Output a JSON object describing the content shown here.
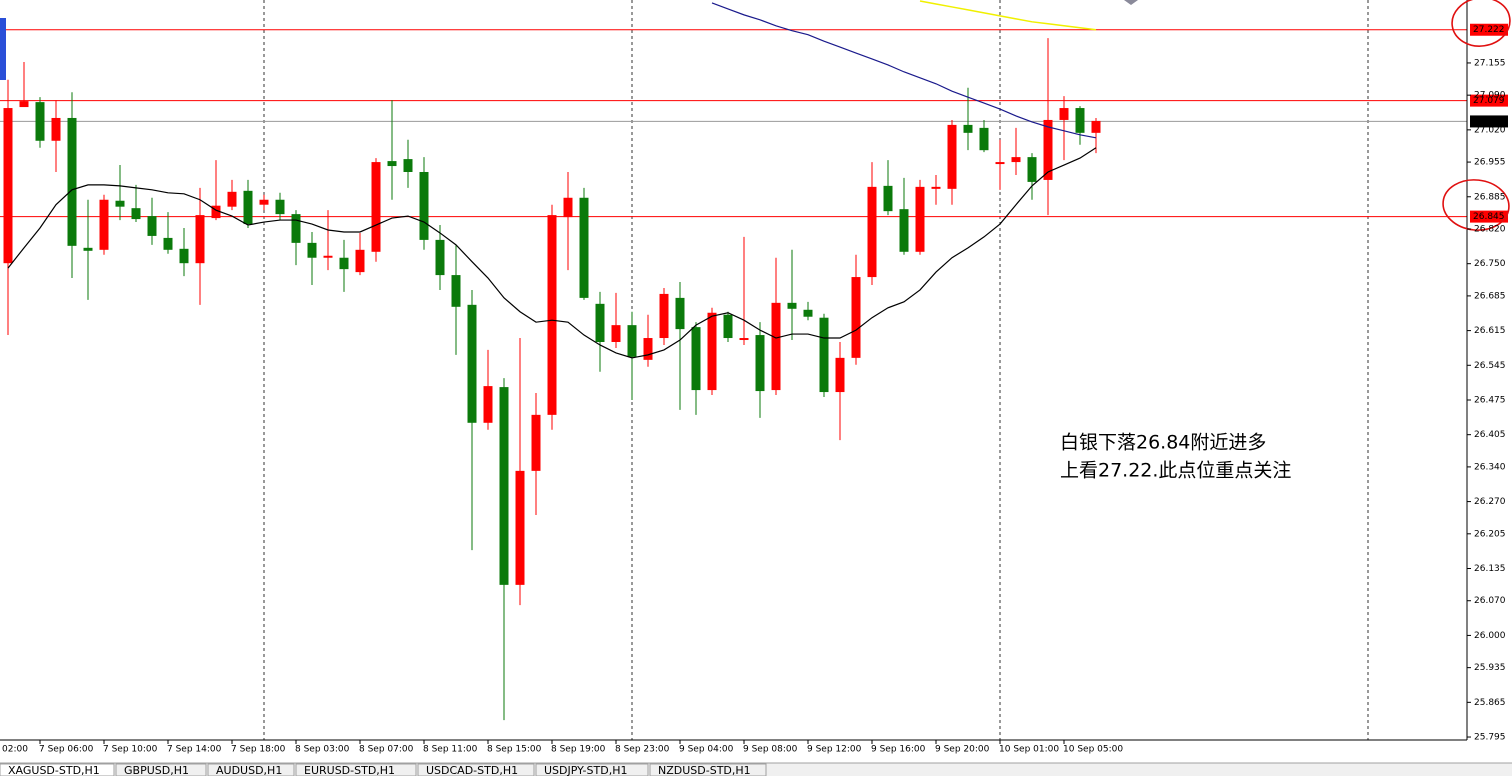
{
  "chart_data": {
    "type": "candlestick",
    "categories": [
      "02:00",
      null,
      null,
      null,
      "7 Sep 06:00",
      null,
      null,
      null,
      "7 Sep 10:00",
      null,
      null,
      null,
      "7 Sep 14:00",
      null,
      null,
      null,
      "7 Sep 18:00",
      null,
      null,
      null,
      "8 Sep 03:00",
      null,
      null,
      null,
      "8 Sep 07:00",
      null,
      null,
      null,
      "8 Sep 11:00",
      null,
      null,
      null,
      "8 Sep 15:00",
      null,
      null,
      null,
      "8 Sep 19:00",
      null,
      null,
      null,
      "8 Sep 23:00",
      null,
      null,
      null,
      "9 Sep 04:00",
      null,
      null,
      null,
      "9 Sep 08:00",
      null,
      null,
      null,
      "9 Sep 12:00",
      null,
      null,
      null,
      "9 Sep 16:00",
      null,
      null,
      null,
      "9 Sep 20:00",
      null,
      null,
      null,
      "10 Sep 01:00",
      null,
      null,
      null,
      "10 Sep 05:00",
      null,
      null
    ],
    "open": [
      null,
      null,
      27.064,
      27.078,
      26.998,
      27.044,
      26.786,
      26.776,
      26.879,
      26.865,
      26.84,
      26.806,
      26.778,
      26.751,
      26.848,
      26.867,
      26.895,
      26.83,
      26.879,
      26.85,
      26.792,
      26.762,
      26.766,
      26.739,
      26.778,
      26.955,
      26.947,
      26.935,
      26.798,
      26.727,
      26.663,
      26.429,
      26.503,
      26.102,
      26.332,
      26.445,
      26.848,
      26.883,
      26.681,
      26.592,
      26.626,
      26.562,
      26.6,
      26.689,
      26.618,
      26.495,
      26.651,
      26.6,
      26.6,
      26.493,
      26.671,
      26.659,
      26.643,
      26.491,
      26.56,
      26.723,
      26.905,
      26.856,
      26.774,
      26.905,
      26.905,
      27.03,
      27.014,
      26.979,
      26.955,
      26.965,
      26.915,
      27.04,
      27.064,
      27.014,
      27.038
    ],
    "high": [
      null,
      null,
      27.121,
      27.157,
      27.086,
      27.08,
      27.096,
      26.879,
      26.889,
      26.949,
      26.909,
      26.883,
      26.854,
      26.822,
      26.903,
      26.959,
      26.919,
      26.919,
      26.889,
      26.893,
      26.858,
      26.814,
      26.858,
      26.798,
      26.812,
      26.963,
      27.08,
      27.0,
      26.965,
      26.828,
      26.788,
      26.697,
      26.576,
      26.519,
      26.6,
      26.489,
      26.869,
      26.935,
      26.903,
      26.693,
      26.691,
      26.653,
      26.647,
      26.701,
      26.713,
      26.632,
      26.661,
      26.653,
      26.804,
      26.632,
      26.762,
      26.778,
      26.673,
      26.649,
      26.592,
      26.768,
      26.955,
      26.959,
      26.923,
      26.919,
      26.929,
      27.04,
      27.105,
      27.04,
      27.0,
      27.024,
      26.973,
      27.205,
      27.088,
      27.068,
      27.044
    ],
    "low": [
      null,
      null,
      26.606,
      27.066,
      26.984,
      26.935,
      26.721,
      26.677,
      26.768,
      26.838,
      26.834,
      26.788,
      26.77,
      26.725,
      26.667,
      26.838,
      26.858,
      26.822,
      26.858,
      26.838,
      26.747,
      26.707,
      26.737,
      26.693,
      26.727,
      26.754,
      26.879,
      26.903,
      26.778,
      26.697,
      26.566,
      26.172,
      26.415,
      25.829,
      26.061,
      26.243,
      26.415,
      26.737,
      26.677,
      26.532,
      26.58,
      26.475,
      26.542,
      26.586,
      26.455,
      26.445,
      26.485,
      26.592,
      26.586,
      26.439,
      26.485,
      26.596,
      26.636,
      26.481,
      26.394,
      26.546,
      26.707,
      26.848,
      26.768,
      26.768,
      26.869,
      26.869,
      26.979,
      26.975,
      26.899,
      26.929,
      26.879,
      26.848,
      26.959,
      26.99,
      26.973
    ],
    "close": [
      null,
      null,
      26.751,
      27.066,
      27.076,
      26.998,
      27.044,
      26.782,
      26.778,
      26.877,
      26.862,
      26.846,
      26.802,
      26.78,
      26.751,
      26.842,
      26.865,
      26.897,
      26.869,
      26.879,
      26.85,
      26.792,
      26.762,
      26.762,
      26.733,
      26.774,
      26.957,
      26.961,
      26.935,
      26.798,
      26.727,
      26.667,
      26.429,
      26.501,
      26.102,
      26.332,
      26.445,
      26.844,
      26.883,
      26.669,
      26.592,
      26.626,
      26.556,
      26.6,
      26.681,
      26.622,
      26.495,
      26.647,
      26.596,
      26.606,
      26.495,
      26.671,
      26.657,
      26.641,
      26.491,
      26.56,
      26.723,
      26.907,
      26.86,
      26.774,
      26.901,
      26.901,
      27.03,
      27.024,
      26.951,
      26.955,
      26.965,
      26.919,
      27.04,
      27.064,
      27.014
    ],
    "up_color": "#0b7a0b",
    "down_color": "#ff0000",
    "series": [
      {
        "color": "#000000",
        "values": [
          null,
          null,
          26.741,
          26.782,
          26.822,
          26.869,
          26.899,
          26.909,
          26.909,
          26.907,
          26.903,
          26.899,
          26.893,
          26.891,
          26.879,
          26.858,
          26.846,
          26.828,
          26.834,
          26.838,
          26.838,
          26.83,
          26.818,
          26.814,
          26.814,
          26.828,
          26.842,
          26.846,
          26.834,
          26.812,
          26.788,
          26.754,
          26.721,
          26.681,
          26.653,
          26.632,
          26.636,
          26.632,
          26.606,
          26.586,
          26.57,
          26.56,
          26.566,
          26.576,
          26.596,
          26.626,
          26.644,
          26.651,
          26.636,
          26.616,
          26.6,
          26.608,
          26.608,
          26.6,
          26.6,
          26.616,
          26.641,
          26.661,
          26.673,
          26.697,
          26.733,
          26.762,
          26.782,
          26.804,
          26.83,
          26.869,
          26.907,
          26.935,
          26.949,
          26.963,
          26.984
        ]
      },
      {
        "color": "#1a1a8c",
        "values": [
          null,
          null,
          null,
          null,
          null,
          null,
          null,
          null,
          null,
          null,
          null,
          null,
          null,
          null,
          null,
          null,
          null,
          null,
          null,
          null,
          null,
          null,
          null,
          null,
          null,
          null,
          null,
          null,
          null,
          null,
          null,
          null,
          null,
          null,
          null,
          null,
          null,
          null,
          null,
          null,
          null,
          null,
          null,
          null,
          null,
          null,
          27.276,
          27.264,
          27.252,
          27.242,
          27.23,
          27.22,
          27.212,
          27.199,
          27.187,
          27.175,
          27.163,
          27.151,
          27.137,
          27.125,
          27.113,
          27.098,
          27.086,
          27.074,
          27.062,
          27.048,
          27.036,
          27.026,
          27.018,
          27.01,
          27.004
        ]
      },
      {
        "color": "#f0f000",
        "values": [
          null,
          null,
          null,
          null,
          null,
          null,
          null,
          null,
          null,
          null,
          null,
          null,
          null,
          null,
          null,
          null,
          null,
          null,
          null,
          null,
          null,
          null,
          null,
          null,
          null,
          null,
          null,
          null,
          null,
          null,
          null,
          null,
          null,
          null,
          null,
          null,
          null,
          null,
          null,
          null,
          null,
          null,
          null,
          null,
          null,
          null,
          null,
          null,
          null,
          null,
          null,
          null,
          null,
          null,
          null,
          null,
          null,
          null,
          null,
          27.28,
          27.274,
          27.268,
          27.262,
          27.256,
          27.25,
          27.244,
          27.238,
          27.234,
          27.23,
          27.226,
          27.222
        ]
      }
    ],
    "levels": [
      {
        "value": 27.222,
        "color": "#ff0000"
      },
      {
        "value": 27.079,
        "color": "#ff0000"
      },
      {
        "value": 27.037,
        "color": "#000000"
      },
      {
        "value": 26.845,
        "color": "#ff0000"
      }
    ],
    "ylim": [
      25.789,
      27.282
    ],
    "yticks": [
      27.155,
      {
        "value": 27.09,
        "label": "27.090"
      },
      {
        "value": 27.02,
        "label": "27.020"
      },
      26.955,
      26.885,
      {
        "value": 26.82,
        "label": "26.820"
      },
      {
        "value": 26.75,
        "label": "26.750"
      },
      26.685,
      26.615,
      26.545,
      26.475,
      26.405,
      {
        "value": 26.34,
        "label": "26.340"
      },
      {
        "value": 26.27,
        "label": "26.270"
      },
      26.205,
      26.135,
      {
        "value": 26.07,
        "label": "26.070"
      },
      {
        "value": 26,
        "label": "26.000"
      },
      25.935,
      25.865,
      25.795
    ],
    "annotations": [
      "白银下落26.84附近进多",
      "上看27.22.此点位重点关注"
    ],
    "annotation_color": "#ff2200"
  },
  "tabs": [
    "XAGUSD-STD,H1",
    "GBPUSD,H1",
    "AUDUSD,H1",
    "EURUSD-STD,H1",
    "USDCAD-STD,H1",
    "USDJPY-STD,H1",
    "NZDUSD-STD,H1"
  ],
  "active_tab": 0
}
